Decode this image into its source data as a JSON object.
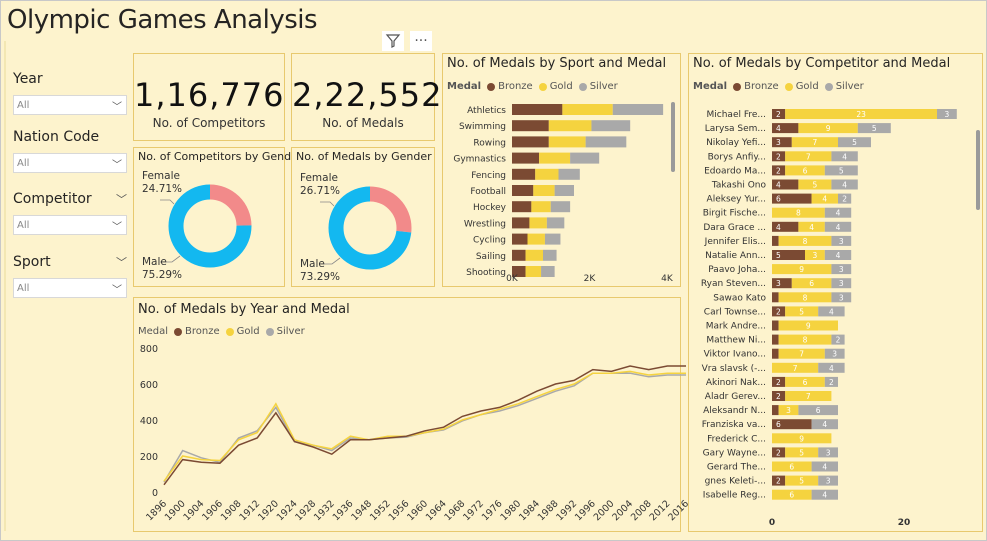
{
  "page": {
    "title": "Olympic Games Analysis"
  },
  "toolbar": {
    "filter_icon": "filter-icon",
    "more_label": "···"
  },
  "slicers": [
    {
      "title": "Year",
      "value": "All"
    },
    {
      "title": "Nation Code",
      "value": "All"
    },
    {
      "title": "Competitor",
      "value": "All"
    },
    {
      "title": "Sport",
      "value": "All"
    }
  ],
  "kpis": {
    "competitors": {
      "value": "1,16,776",
      "label": "No. of Competitors"
    },
    "medals": {
      "value": "2,22,552",
      "label": "No. of Medals"
    }
  },
  "colors": {
    "bronze": "#7b4a33",
    "gold": "#f5d33f",
    "silver": "#a9a9a9",
    "female": "#f28a8a",
    "male": "#13b8f0",
    "background": "#fdf3cd",
    "border": "#e8c96e"
  },
  "legend": {
    "title": "Medal",
    "bronze": "Bronze",
    "gold": "Gold",
    "silver": "Silver"
  },
  "chart_data": [
    {
      "type": "pie",
      "title": "No. of Competitors by Gender",
      "categories": [
        "Female",
        "Male"
      ],
      "values": [
        24.71,
        75.29
      ],
      "labels": [
        "Female",
        "24.71%",
        "Male",
        "75.29%"
      ]
    },
    {
      "type": "pie",
      "title": "No. of Medals by Gender",
      "categories": [
        "Female",
        "Male"
      ],
      "values": [
        26.71,
        73.29
      ],
      "labels": [
        "Female",
        "26.71%",
        "Male",
        "73.29%"
      ]
    },
    {
      "type": "bar",
      "title": "No. of Medals by Sport and Medal",
      "orientation": "horizontal",
      "stacked": true,
      "categories": [
        "Athletics",
        "Swimming",
        "Rowing",
        "Gymnastics",
        "Fencing",
        "Football",
        "Hockey",
        "Wrestling",
        "Cycling",
        "Sailing",
        "Shooting"
      ],
      "series": [
        {
          "name": "Bronze",
          "values": [
            1300,
            950,
            950,
            700,
            600,
            550,
            500,
            450,
            400,
            350,
            350
          ]
        },
        {
          "name": "Gold",
          "values": [
            1300,
            1100,
            950,
            800,
            600,
            550,
            500,
            450,
            450,
            450,
            400
          ]
        },
        {
          "name": "Silver",
          "values": [
            1300,
            1000,
            1050,
            750,
            550,
            500,
            500,
            450,
            400,
            350,
            350
          ]
        }
      ],
      "xticks": [
        "0K",
        "2K",
        "4K"
      ],
      "xlim": [
        0,
        4000
      ]
    },
    {
      "type": "bar",
      "title": "No. of Medals by Competitor and Medal",
      "orientation": "horizontal",
      "stacked": true,
      "categories": [
        "Michael Fre...",
        "Larysa Sem...",
        "Nikolay Yefi...",
        "Borys Anfiy...",
        "Edoardo Ma...",
        "Takashi Ono",
        "Aleksey Yur...",
        "Birgit Fische...",
        "Dara Grace ...",
        "Jennifer Elis...",
        "Natalie Ann...",
        "Paavo Joha...",
        "Ryan Steven...",
        "Sawao Kato",
        "Carl Townse...",
        "Mark Andre...",
        "Matthew Ni...",
        "Viktor Ivano...",
        "Vra slavsk (-...",
        "Akinori Nak...",
        "Aladr Gerev...",
        "Aleksandr N...",
        "Franziska va...",
        "Frederick C...",
        "Gary Wayne...",
        "Gerard The...",
        "gnes Keleti-...",
        "Isabelle Reg..."
      ],
      "series": [
        {
          "name": "Bronze",
          "values": [
            2,
            4,
            3,
            2,
            2,
            4,
            6,
            0,
            4,
            1,
            5,
            0,
            3,
            1,
            2,
            1,
            1,
            1,
            0,
            2,
            2,
            1,
            6,
            0,
            2,
            0,
            2,
            0
          ]
        },
        {
          "name": "Gold",
          "values": [
            23,
            9,
            7,
            7,
            6,
            5,
            4,
            8,
            4,
            8,
            3,
            9,
            6,
            8,
            5,
            9,
            8,
            7,
            7,
            6,
            7,
            3,
            0,
            9,
            5,
            6,
            5,
            6
          ]
        },
        {
          "name": "Silver",
          "values": [
            3,
            5,
            5,
            4,
            5,
            4,
            2,
            4,
            4,
            3,
            4,
            3,
            3,
            3,
            4,
            0,
            2,
            3,
            4,
            2,
            0,
            6,
            4,
            0,
            3,
            4,
            3,
            4
          ]
        }
      ],
      "data_labels": [
        [
          "2",
          "23",
          "3"
        ],
        [
          "4",
          "9",
          "5"
        ],
        [
          "3",
          "7",
          "5"
        ],
        [
          "2",
          "7",
          "4"
        ],
        [
          "2",
          "6",
          "5"
        ],
        [
          "4",
          "5",
          "4"
        ],
        [
          "6",
          "4",
          "2"
        ],
        [
          "",
          "8",
          "4"
        ],
        [
          "4",
          "4",
          "4"
        ],
        [
          "",
          "8",
          "3"
        ],
        [
          "5",
          "3",
          "4"
        ],
        [
          "",
          "9",
          "3"
        ],
        [
          "3",
          "6",
          "3"
        ],
        [
          "",
          "8",
          "3"
        ],
        [
          "2",
          "5",
          "4"
        ],
        [
          "",
          "9",
          ""
        ],
        [
          "",
          "8",
          "2"
        ],
        [
          "",
          "7",
          "3"
        ],
        [
          "",
          "7",
          "4"
        ],
        [
          "2",
          "6",
          "2"
        ],
        [
          "2",
          "7",
          ""
        ],
        [
          "",
          "3",
          "6"
        ],
        [
          "6",
          "",
          "4"
        ],
        [
          "",
          "9",
          ""
        ],
        [
          "2",
          "5",
          "3"
        ],
        [
          "",
          "6",
          "4"
        ],
        [
          "2",
          "5",
          "3"
        ],
        [
          "",
          "6",
          "4"
        ]
      ],
      "xticks": [
        "0",
        "20"
      ],
      "xlim": [
        0,
        28
      ]
    },
    {
      "type": "line",
      "title": "No. of Medals by Year and Medal",
      "x": [
        1896,
        1900,
        1904,
        1906,
        1908,
        1912,
        1920,
        1924,
        1928,
        1932,
        1936,
        1948,
        1952,
        1956,
        1960,
        1964,
        1968,
        1972,
        1976,
        1980,
        1984,
        1988,
        1992,
        1996,
        2000,
        2004,
        2008,
        2012,
        2016
      ],
      "xticks": [
        "1896",
        "1900",
        "1904",
        "1906",
        "1908",
        "1912",
        "1920",
        "1924",
        "1928",
        "1932",
        "1936",
        "1948",
        "1952",
        "1956",
        "1960",
        "1964",
        "1968",
        "1972",
        "1976",
        "1980",
        "1984",
        "1988",
        "1992",
        "1996",
        "2000",
        "2004",
        "2008",
        "2012",
        "2016"
      ],
      "series": [
        {
          "name": "Bronze",
          "values": [
            40,
            180,
            165,
            160,
            260,
            300,
            440,
            280,
            250,
            210,
            290,
            290,
            300,
            310,
            340,
            360,
            420,
            450,
            470,
            510,
            560,
            600,
            620,
            680,
            670,
            700,
            680,
            700,
            700
          ]
        },
        {
          "name": "Gold",
          "values": [
            60,
            200,
            180,
            175,
            290,
            330,
            490,
            290,
            260,
            240,
            310,
            290,
            310,
            310,
            330,
            350,
            400,
            430,
            460,
            490,
            530,
            570,
            600,
            660,
            660,
            670,
            650,
            660,
            660
          ]
        },
        {
          "name": "Silver",
          "values": [
            55,
            230,
            190,
            165,
            300,
            340,
            470,
            280,
            260,
            230,
            300,
            290,
            300,
            305,
            330,
            345,
            395,
            430,
            450,
            480,
            520,
            560,
            590,
            660,
            660,
            660,
            640,
            650,
            650
          ]
        }
      ],
      "yticks": [
        "0",
        "200",
        "400",
        "600",
        "800"
      ],
      "ylim": [
        0,
        800
      ]
    }
  ]
}
